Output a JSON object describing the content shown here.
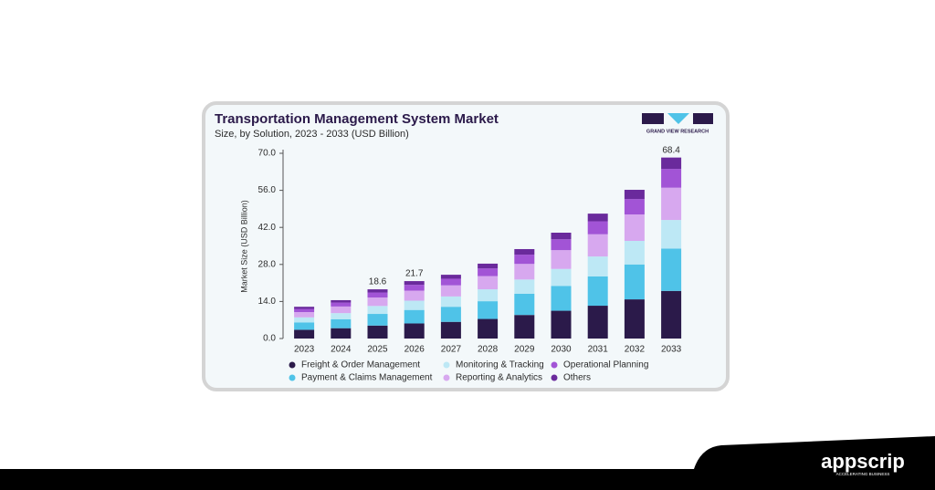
{
  "chart_data": {
    "type": "stacked_bar",
    "title": "Transportation Management System Market",
    "subtitle": "Size, by Solution, 2023 - 2033 (USD Billion)",
    "y_label": "Market Size (USD Billion)",
    "categories": [
      "2023",
      "2024",
      "2025",
      "2026",
      "2027",
      "2028",
      "2029",
      "2030",
      "2031",
      "2032",
      "2033"
    ],
    "series": [
      {
        "name": "Freight & Order Management",
        "color": "#2b1a4a",
        "values": [
          3.3,
          3.9,
          4.9,
          5.7,
          6.3,
          7.4,
          8.9,
          10.5,
          12.4,
          14.8,
          18.0
        ]
      },
      {
        "name": "Payment & Claims Management",
        "color": "#4fc3e8",
        "values": [
          2.8,
          3.4,
          4.4,
          5.1,
          5.7,
          6.7,
          8.0,
          9.4,
          11.1,
          13.2,
          16.0
        ]
      },
      {
        "name": "Monitoring & Tracking",
        "color": "#bde8f5",
        "values": [
          1.9,
          2.3,
          3.0,
          3.5,
          3.9,
          4.5,
          5.4,
          6.4,
          7.5,
          8.9,
          10.8
        ]
      },
      {
        "name": "Reporting & Analytics",
        "color": "#d7a8ef",
        "values": [
          2.0,
          2.5,
          3.2,
          3.8,
          4.2,
          5.0,
          5.9,
          7.1,
          8.4,
          10.0,
          12.2
        ]
      },
      {
        "name": "Operational Planning",
        "color": "#a254d6",
        "values": [
          1.2,
          1.5,
          1.9,
          2.2,
          2.5,
          2.9,
          3.5,
          4.1,
          4.9,
          5.8,
          7.1
        ]
      },
      {
        "name": "Others",
        "color": "#6a2a9c",
        "values": [
          0.8,
          0.9,
          1.2,
          1.4,
          1.5,
          1.8,
          2.1,
          2.5,
          2.9,
          3.5,
          4.3
        ]
      }
    ],
    "totals": [
      null,
      null,
      18.6,
      21.7,
      null,
      null,
      null,
      null,
      null,
      null,
      68.4
    ],
    "ylim": [
      0,
      70
    ],
    "yticks": [
      {
        "value": 0,
        "label": "0.0"
      },
      {
        "value": 14,
        "label": "14.0"
      },
      {
        "value": 28,
        "label": "28.0"
      },
      {
        "value": 42,
        "label": "42.0"
      },
      {
        "value": 56,
        "label": "56.0"
      },
      {
        "value": 70,
        "label": "70.0"
      }
    ],
    "grid": false
  },
  "branding": {
    "source": "GRAND VIEW RESEARCH",
    "logo": "appscrip",
    "tagline": "ACCELERATING BUSINESS"
  }
}
